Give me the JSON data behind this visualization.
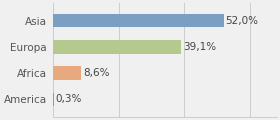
{
  "categories": [
    "Asia",
    "Europa",
    "Africa",
    "America"
  ],
  "values": [
    52.0,
    39.1,
    8.6,
    0.3
  ],
  "labels": [
    "52,0%",
    "39,1%",
    "8,6%",
    "0,3%"
  ],
  "bar_colors": [
    "#7a9fc2",
    "#b5c98e",
    "#e8a97e",
    "#7a9fc2"
  ],
  "background_color": "#f0f0f0",
  "xlim": [
    0,
    68
  ],
  "bar_height": 0.52,
  "label_fontsize": 7.5,
  "tick_fontsize": 7.5,
  "grid_xticks": [
    0,
    20,
    40,
    60
  ]
}
